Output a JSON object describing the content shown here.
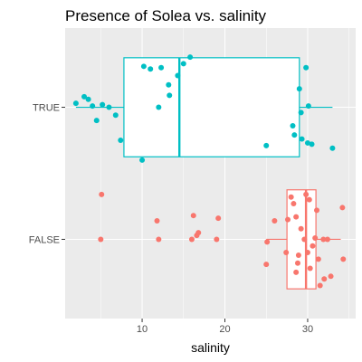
{
  "chart_data": {
    "type": "boxplot",
    "title": "Presence of Solea vs. salinity",
    "xlabel": "salinity",
    "ylabel": "",
    "xlim": [
      0.7,
      35.8
    ],
    "x_ticks": [
      10,
      20,
      30
    ],
    "categories": [
      "FALSE",
      "TRUE"
    ],
    "grid": true,
    "legend": "none",
    "colors": {
      "TRUE": "#00BFC4",
      "FALSE": "#F8766D",
      "panel": "#EBEBEB",
      "grid": "#FFFFFF",
      "text": "#4D4D4D"
    },
    "boxes": [
      {
        "category": "TRUE",
        "whisker_low": 2.0,
        "q1": 7.8,
        "median": 14.5,
        "q3": 29.0,
        "whisker_high": 33.0,
        "points": [
          {
            "x": 2.0,
            "y": 0.03
          },
          {
            "x": 3.0,
            "y": 0.08
          },
          {
            "x": 3.5,
            "y": 0.06
          },
          {
            "x": 4.0,
            "y": 0.01
          },
          {
            "x": 5.2,
            "y": 0.02
          },
          {
            "x": 6.0,
            "y": 0.0
          },
          {
            "x": 4.5,
            "y": -0.1
          },
          {
            "x": 6.8,
            "y": -0.06
          },
          {
            "x": 7.4,
            "y": -0.25
          },
          {
            "x": 10.0,
            "y": -0.4
          },
          {
            "x": 10.2,
            "y": 0.31
          },
          {
            "x": 11.0,
            "y": 0.29
          },
          {
            "x": 12.0,
            "y": 0.0
          },
          {
            "x": 12.3,
            "y": 0.3
          },
          {
            "x": 13.2,
            "y": 0.17
          },
          {
            "x": 13.3,
            "y": 0.09
          },
          {
            "x": 14.3,
            "y": 0.24
          },
          {
            "x": 15.0,
            "y": 0.33
          },
          {
            "x": 15.8,
            "y": 0.38
          },
          {
            "x": 25.0,
            "y": -0.29
          },
          {
            "x": 28.2,
            "y": -0.14
          },
          {
            "x": 28.4,
            "y": -0.21
          },
          {
            "x": 29.0,
            "y": 0.14
          },
          {
            "x": 29.2,
            "y": -0.04
          },
          {
            "x": 29.3,
            "y": -0.24
          },
          {
            "x": 29.8,
            "y": 0.3
          },
          {
            "x": 30.0,
            "y": -0.27
          },
          {
            "x": 30.1,
            "y": 0.01
          },
          {
            "x": 30.5,
            "y": -0.28
          },
          {
            "x": 33.0,
            "y": -0.31
          }
        ]
      },
      {
        "category": "FALSE",
        "whisker_low": 25.0,
        "q1": 27.5,
        "median": 29.8,
        "q3": 31.0,
        "whisker_high": 34.0,
        "points": [
          {
            "x": 5.0,
            "y": 0.0
          },
          {
            "x": 5.1,
            "y": 0.34
          },
          {
            "x": 11.8,
            "y": 0.14
          },
          {
            "x": 12.0,
            "y": 0.0
          },
          {
            "x": 16.0,
            "y": 0.0
          },
          {
            "x": 16.2,
            "y": 0.18
          },
          {
            "x": 16.6,
            "y": 0.03
          },
          {
            "x": 16.8,
            "y": 0.05
          },
          {
            "x": 19.0,
            "y": 0.0
          },
          {
            "x": 19.2,
            "y": 0.16
          },
          {
            "x": 25.0,
            "y": -0.19
          },
          {
            "x": 25.1,
            "y": -0.02
          },
          {
            "x": 26.0,
            "y": 0.14
          },
          {
            "x": 27.4,
            "y": -0.1
          },
          {
            "x": 27.6,
            "y": 0.15
          },
          {
            "x": 28.0,
            "y": 0.32
          },
          {
            "x": 28.3,
            "y": 0.27
          },
          {
            "x": 28.6,
            "y": 0.17
          },
          {
            "x": 28.6,
            "y": -0.25
          },
          {
            "x": 28.8,
            "y": -0.18
          },
          {
            "x": 28.9,
            "y": -0.12
          },
          {
            "x": 29.2,
            "y": 0.08
          },
          {
            "x": 29.6,
            "y": 0.0
          },
          {
            "x": 29.8,
            "y": 0.34
          },
          {
            "x": 30.0,
            "y": -0.1
          },
          {
            "x": 30.2,
            "y": 0.3
          },
          {
            "x": 30.3,
            "y": -0.22
          },
          {
            "x": 30.6,
            "y": -0.05
          },
          {
            "x": 30.9,
            "y": 0.01
          },
          {
            "x": 31.1,
            "y": 0.22
          },
          {
            "x": 31.3,
            "y": -0.15
          },
          {
            "x": 31.5,
            "y": -0.35
          },
          {
            "x": 31.9,
            "y": 0.0
          },
          {
            "x": 32.0,
            "y": -0.3
          },
          {
            "x": 32.4,
            "y": 0.0
          },
          {
            "x": 32.8,
            "y": -0.28
          },
          {
            "x": 34.2,
            "y": 0.24
          },
          {
            "x": 34.3,
            "y": -0.15
          }
        ]
      }
    ]
  }
}
